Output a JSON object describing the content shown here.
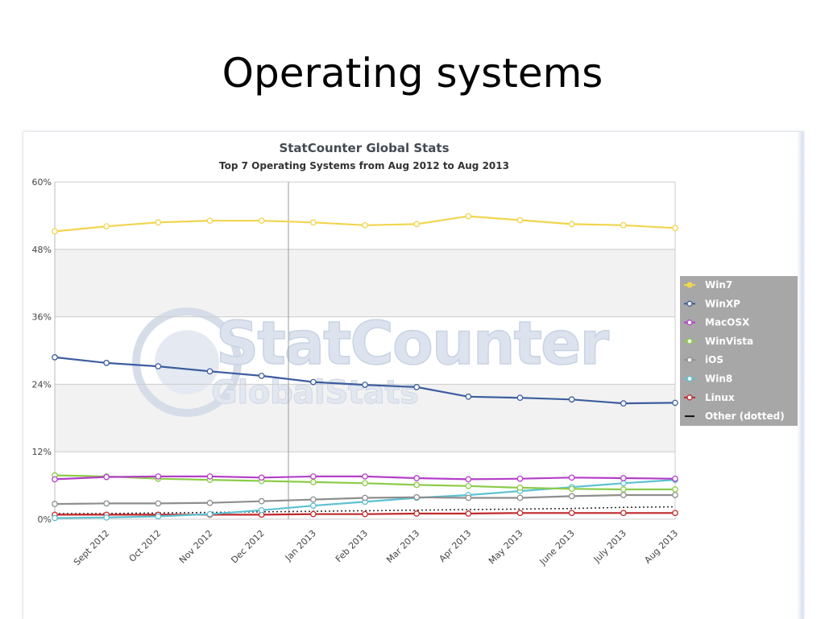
{
  "slide": {
    "title": "Operating systems"
  },
  "watermark": {
    "line1": "StatCounter",
    "line2": "GlobalStats"
  },
  "chart_data": {
    "type": "line",
    "title": "StatCounter Global Stats",
    "subtitle": "Top 7 Operating Systems from Aug 2012 to Aug 2013",
    "categories": [
      "Aug 2012",
      "Sept 2012",
      "Oct 2012",
      "Nov 2012",
      "Dec 2012",
      "Jan 2013",
      "Feb 2013",
      "Mar 2013",
      "Apr 2013",
      "May 2013",
      "June 2013",
      "July 2013",
      "Aug 2013"
    ],
    "x_tick_labels": [
      "Sept 2012",
      "Oct 2012",
      "Nov 2012",
      "Dec 2012",
      "Jan 2013",
      "Feb 2013",
      "Mar 2013",
      "Apr 2013",
      "May 2013",
      "June 2013",
      "July 2013",
      "Aug 2013"
    ],
    "y_ticks": [
      0,
      12,
      24,
      36,
      48,
      60
    ],
    "y_tick_labels": [
      "0%",
      "12%",
      "24%",
      "36%",
      "48%",
      "60%"
    ],
    "ylim": [
      0,
      60
    ],
    "y_unit": "%",
    "grid": true,
    "legend_position": "right",
    "series": [
      {
        "name": "Win7",
        "color": "#f2d44e",
        "values": [
          51.2,
          52.1,
          52.8,
          53.1,
          53.1,
          52.8,
          52.3,
          52.5,
          53.9,
          53.2,
          52.5,
          52.3,
          51.8
        ]
      },
      {
        "name": "WinXP",
        "color": "#3d5d9f",
        "values": [
          28.8,
          27.8,
          27.2,
          26.3,
          25.5,
          24.4,
          23.9,
          23.5,
          21.8,
          21.6,
          21.3,
          20.6,
          20.7
        ]
      },
      {
        "name": "MacOSX",
        "color": "#b43fc8",
        "values": [
          7.1,
          7.5,
          7.6,
          7.6,
          7.4,
          7.6,
          7.6,
          7.3,
          7.1,
          7.2,
          7.4,
          7.3,
          7.2
        ]
      },
      {
        "name": "WinVista",
        "color": "#8ccb4a",
        "values": [
          7.8,
          7.6,
          7.2,
          7.0,
          6.8,
          6.6,
          6.4,
          6.1,
          5.9,
          5.6,
          5.4,
          5.3,
          5.3
        ]
      },
      {
        "name": "iOS",
        "color": "#8e8e8e",
        "values": [
          2.7,
          2.8,
          2.8,
          2.9,
          3.2,
          3.5,
          3.8,
          3.9,
          3.8,
          3.8,
          4.1,
          4.3,
          4.3
        ]
      },
      {
        "name": "Win8",
        "color": "#5cc1d1",
        "values": [
          0.2,
          0.3,
          0.5,
          0.9,
          1.6,
          2.4,
          3.1,
          3.8,
          4.3,
          5.0,
          5.7,
          6.4,
          7.0
        ]
      },
      {
        "name": "Linux",
        "color": "#c0282b",
        "values": [
          0.8,
          0.8,
          0.8,
          0.8,
          0.8,
          0.9,
          0.9,
          1.0,
          1.0,
          1.1,
          1.1,
          1.1,
          1.1
        ]
      },
      {
        "name": "Other (dotted)",
        "color": "#333333",
        "dotted": true,
        "values": [
          1.0,
          1.0,
          1.1,
          1.2,
          1.3,
          1.4,
          1.5,
          1.6,
          1.7,
          1.8,
          1.9,
          2.1,
          2.2
        ]
      }
    ]
  }
}
